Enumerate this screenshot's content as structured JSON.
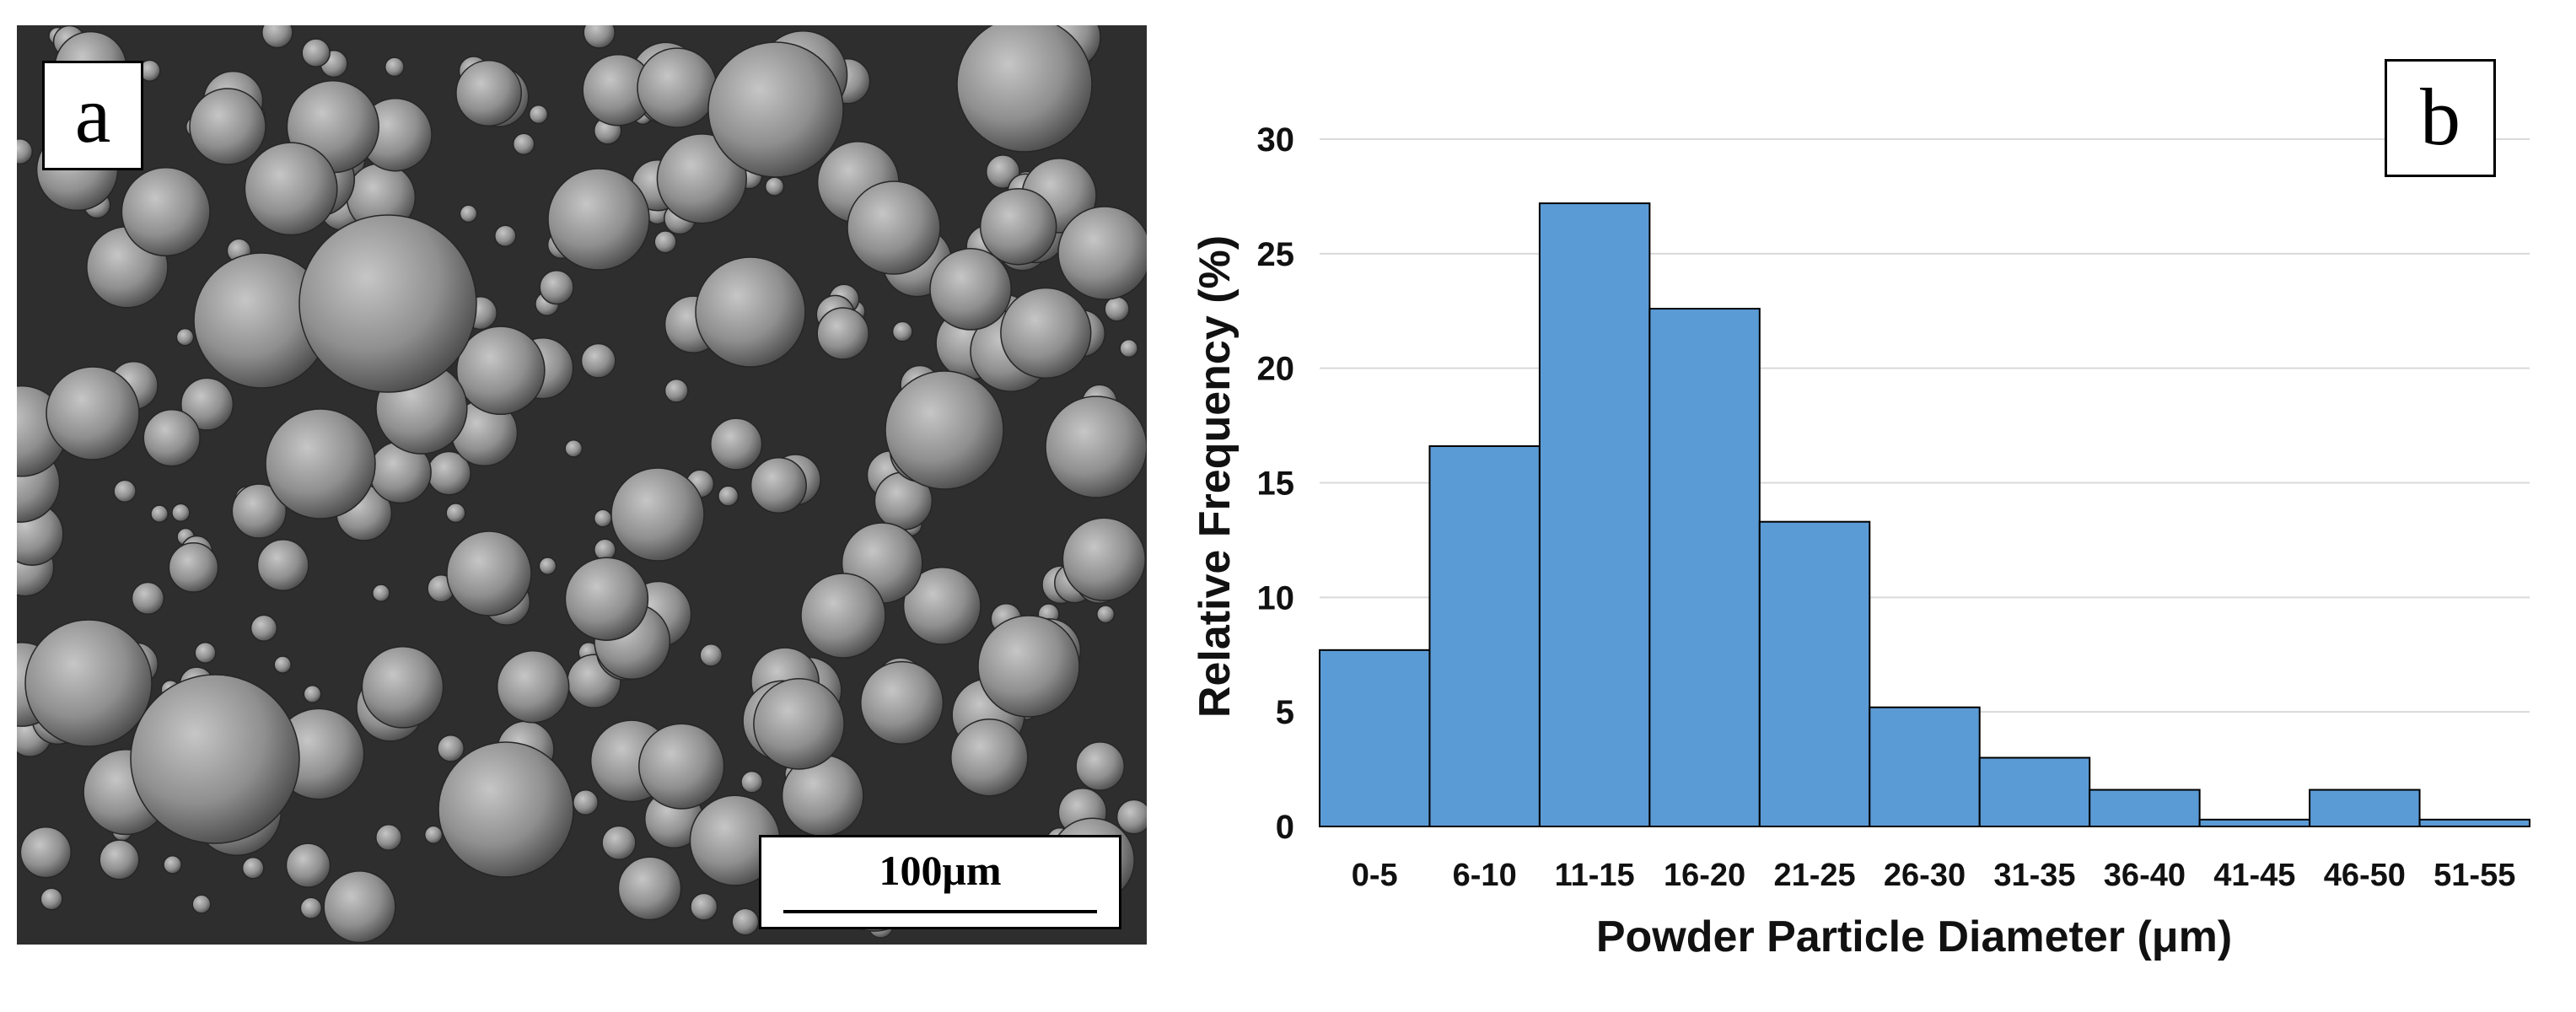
{
  "panel_a": {
    "label": "a",
    "scale_bar_label": "100μm"
  },
  "panel_b": {
    "label": "b"
  },
  "colors": {
    "bar_fill": "#5b9bd5",
    "bar_stroke": "#000000",
    "gridline": "#d9d9d9",
    "sem_background": "#2e2e2e",
    "particle": "#9a9a9a"
  },
  "chart_data": {
    "type": "bar",
    "categories": [
      "0-5",
      "6-10",
      "11-15",
      "16-20",
      "21-25",
      "26-30",
      "31-35",
      "36-40",
      "41-45",
      "46-50",
      "51-55"
    ],
    "values": [
      7.7,
      16.6,
      27.2,
      22.6,
      13.3,
      5.2,
      3.0,
      1.6,
      0.3,
      1.6,
      0.3
    ],
    "title": "",
    "xlabel": "Powder Particle Diameter (μm)",
    "ylabel": "Relative Frequency (%)",
    "ylim": [
      0,
      30
    ],
    "yticks": [
      0,
      5,
      10,
      15,
      20,
      25,
      30
    ],
    "grid": true,
    "legend": "none"
  }
}
